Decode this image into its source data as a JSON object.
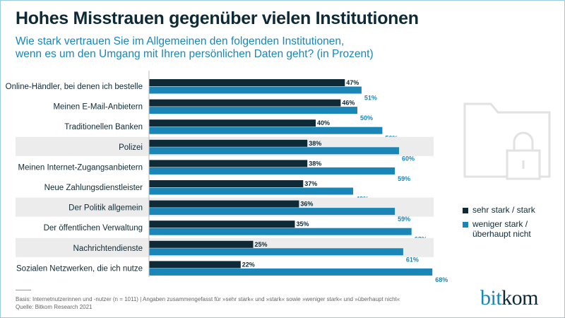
{
  "title": "Hohes Misstrauen gegenüber vielen Institutionen",
  "subtitle_line1": "Wie stark vertrauen Sie im Allgemeinen den folgenden Institutionen,",
  "subtitle_line2": "wenn es um den Umgang mit Ihren persönlichen Daten geht? (in Prozent)",
  "chart_data": {
    "type": "bar",
    "orientation": "horizontal",
    "categories": [
      "Online-Händler, bei denen ich bestelle",
      "Meinen E-Mail-Anbietern",
      "Traditionellen Banken",
      "Polizei",
      "Meinen Internet-Zugangsanbietern",
      "Neue Zahlungsdienstleister",
      "Der Politik allgemein",
      "Der öffentlichen Verwaltung",
      "Nachrichtendienste",
      "Sozialen Netzwerken, die ich nutze"
    ],
    "series": [
      {
        "name": "sehr stark / stark",
        "color": "#0d2a36",
        "values": [
          47,
          46,
          40,
          38,
          38,
          37,
          36,
          35,
          25,
          22
        ]
      },
      {
        "name": "weniger stark / überhaupt nicht",
        "color": "#1a86b8",
        "values": [
          51,
          50,
          56,
          60,
          59,
          49,
          59,
          63,
          61,
          68
        ]
      }
    ],
    "value_suffix": "%",
    "shaded_rows": [
      "Polizei",
      "Der Politik allgemein",
      "Nachrichtendienste"
    ],
    "grid": false,
    "legend_position": "right"
  },
  "legend": {
    "item1": "sehr stark / stark",
    "item2_line1": "weniger stark /",
    "item2_line2": "überhaupt nicht"
  },
  "footer": {
    "basis": "Basis: Internetnutzerinnen und -nutzer (n = 1011) | Angaben zusammengefasst für »sehr stark« und  »stark« sowie »weniger stark« und »überhaupt nicht«",
    "source": "Quelle: Bitkom Research 2021"
  },
  "logo": {
    "part1": "bit",
    "part2": "kom"
  }
}
